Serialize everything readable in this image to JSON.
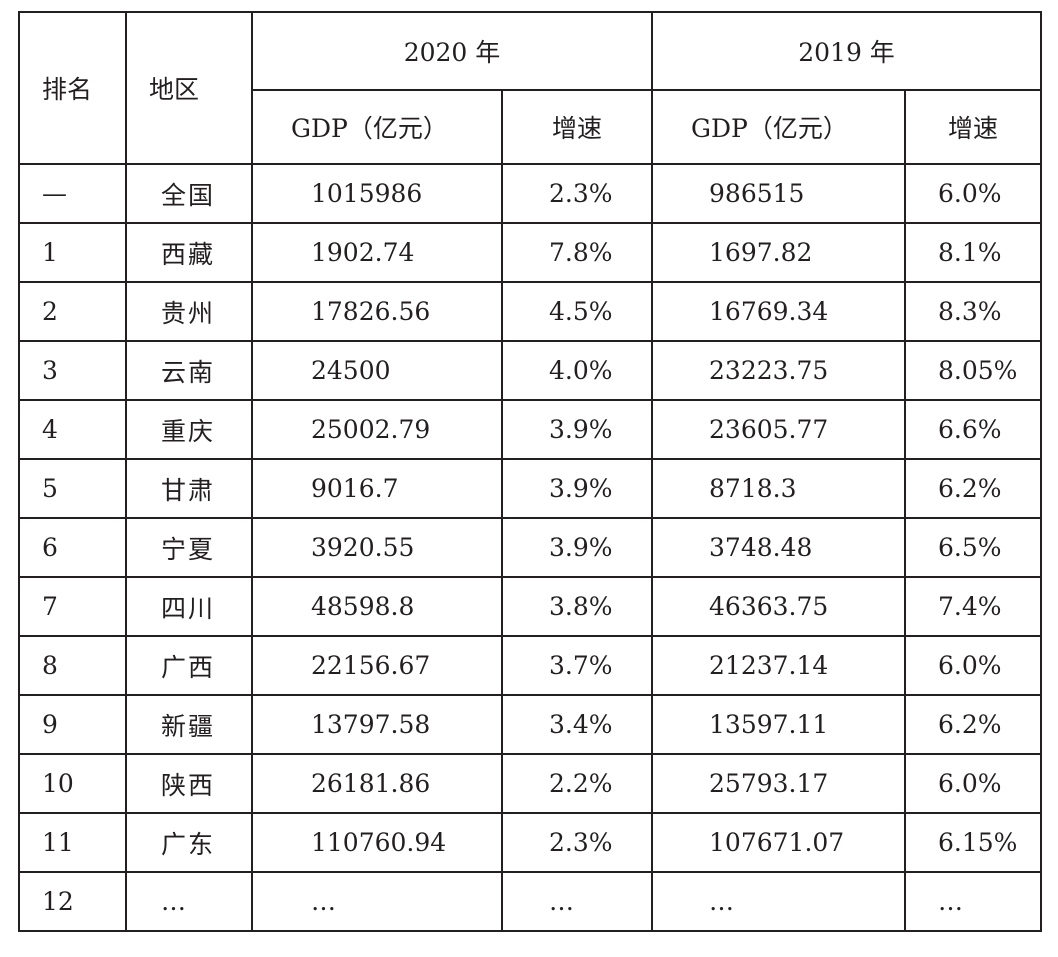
{
  "header": {
    "rank": "排名",
    "region": "地区",
    "year_2020": "2020 年",
    "year_2019": "2019 年",
    "gdp": "GDP（亿元）",
    "growth": "增速"
  },
  "rows": [
    {
      "rank": "—",
      "region": "全国",
      "gdp_2020": "1015986",
      "growth_2020": "2.3%",
      "gdp_2019": "986515",
      "growth_2019": "6.0%"
    },
    {
      "rank": "1",
      "region": "西藏",
      "gdp_2020": "1902.74",
      "growth_2020": "7.8%",
      "gdp_2019": "1697.82",
      "growth_2019": "8.1%"
    },
    {
      "rank": "2",
      "region": "贵州",
      "gdp_2020": "17826.56",
      "growth_2020": "4.5%",
      "gdp_2019": "16769.34",
      "growth_2019": "8.3%"
    },
    {
      "rank": "3",
      "region": "云南",
      "gdp_2020": "24500",
      "growth_2020": "4.0%",
      "gdp_2019": "23223.75",
      "growth_2019": "8.05%"
    },
    {
      "rank": "4",
      "region": "重庆",
      "gdp_2020": "25002.79",
      "growth_2020": "3.9%",
      "gdp_2019": "23605.77",
      "growth_2019": "6.6%"
    },
    {
      "rank": "5",
      "region": "甘肃",
      "gdp_2020": "9016.7",
      "growth_2020": "3.9%",
      "gdp_2019": "8718.3",
      "growth_2019": "6.2%"
    },
    {
      "rank": "6",
      "region": "宁夏",
      "gdp_2020": "3920.55",
      "growth_2020": "3.9%",
      "gdp_2019": "3748.48",
      "growth_2019": "6.5%"
    },
    {
      "rank": "7",
      "region": "四川",
      "gdp_2020": "48598.8",
      "growth_2020": "3.8%",
      "gdp_2019": "46363.75",
      "growth_2019": "7.4%"
    },
    {
      "rank": "8",
      "region": "广西",
      "gdp_2020": "22156.67",
      "growth_2020": "3.7%",
      "gdp_2019": "21237.14",
      "growth_2019": "6.0%"
    },
    {
      "rank": "9",
      "region": "新疆",
      "gdp_2020": "13797.58",
      "growth_2020": "3.4%",
      "gdp_2019": "13597.11",
      "growth_2019": "6.2%"
    },
    {
      "rank": "10",
      "region": "陕西",
      "gdp_2020": "26181.86",
      "growth_2020": "2.2%",
      "gdp_2019": "25793.17",
      "growth_2019": "6.0%"
    },
    {
      "rank": "11",
      "region": "广东",
      "gdp_2020": "110760.94",
      "growth_2020": "2.3%",
      "gdp_2019": "107671.07",
      "growth_2019": "6.15%"
    },
    {
      "rank": "12",
      "region": "…",
      "gdp_2020": "…",
      "growth_2020": "…",
      "gdp_2019": "…",
      "growth_2019": "…"
    }
  ]
}
